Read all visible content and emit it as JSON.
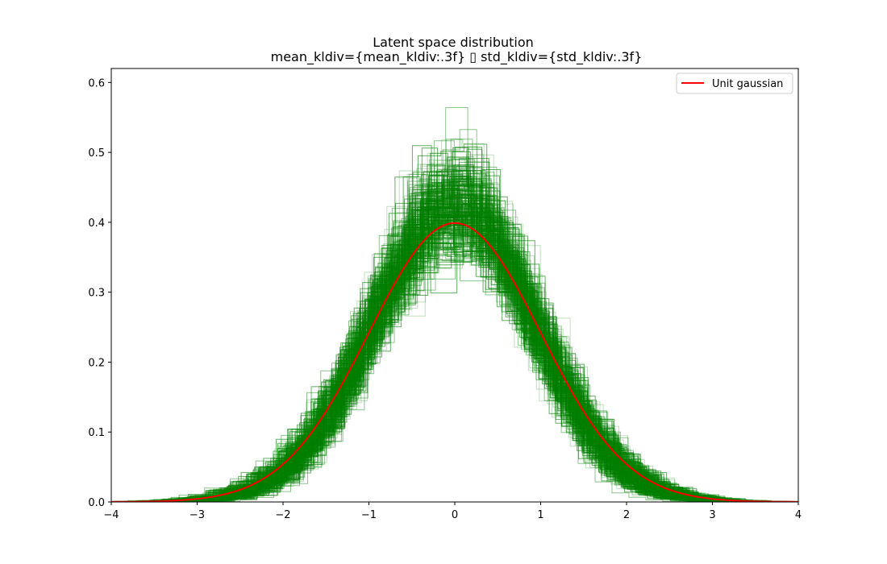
{
  "chart_data": {
    "type": "line",
    "title": "Latent space distribution",
    "subtitle": "mean_kldiv={mean_kldiv:.3f} ▯ std_kldiv={std_kldiv:.3f}",
    "xlabel": "",
    "ylabel": "",
    "xlim": [
      -4,
      4
    ],
    "ylim": [
      0,
      0.62
    ],
    "x_ticks": [
      -4,
      -3,
      -2,
      -1,
      0,
      1,
      2,
      3,
      4
    ],
    "x_tick_labels": [
      "−4",
      "−3",
      "−2",
      "−1",
      "0",
      "1",
      "2",
      "3",
      "4"
    ],
    "y_ticks": [
      0.0,
      0.1,
      0.2,
      0.3,
      0.4,
      0.5,
      0.6
    ],
    "y_tick_labels": [
      "0.0",
      "0.1",
      "0.2",
      "0.3",
      "0.4",
      "0.5",
      "0.6"
    ],
    "grid": false,
    "legend_position": "top-right",
    "series": [
      {
        "name": "Unit gaussian",
        "kind": "line",
        "color": "#ff0000",
        "x": [
          -4.0,
          -3.5,
          -3.0,
          -2.5,
          -2.0,
          -1.5,
          -1.0,
          -0.5,
          0.0,
          0.5,
          1.0,
          1.5,
          2.0,
          2.5,
          3.0,
          3.5,
          4.0
        ],
        "y": [
          0.0001,
          0.0009,
          0.0044,
          0.0175,
          0.054,
          0.1295,
          0.242,
          0.3521,
          0.3989,
          0.3521,
          0.242,
          0.1295,
          0.054,
          0.0175,
          0.0044,
          0.0009,
          0.0001
        ]
      },
      {
        "kind": "step-histograms",
        "color": "#008000",
        "opacity": 0.25,
        "count": 500,
        "approx_peak_range": [
          0.38,
          0.59
        ],
        "approx_spread_range": [
          0.68,
          1.15
        ]
      }
    ]
  },
  "colors": {
    "histogram": "#008000",
    "gaussian": "#ff0000",
    "axes": "#000000",
    "background": "#ffffff"
  }
}
